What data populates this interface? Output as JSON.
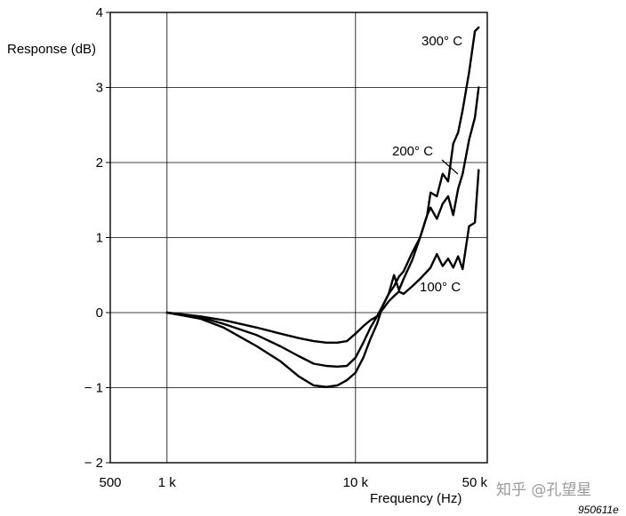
{
  "chart_data": {
    "type": "line",
    "title": "",
    "xlabel": "Frequency (Hz)",
    "ylabel": "Response (dB)",
    "x_scale": "log",
    "xlim": [
      500,
      50000
    ],
    "ylim": [
      -2,
      4
    ],
    "x_ticks": [
      {
        "value": 500,
        "label": "500"
      },
      {
        "value": 1000,
        "label": "1 k"
      },
      {
        "value": 10000,
        "label": "10 k"
      },
      {
        "value": 50000,
        "label": "50 k"
      }
    ],
    "y_ticks": [
      {
        "value": 4,
        "label": "4"
      },
      {
        "value": 3,
        "label": "3"
      },
      {
        "value": 2,
        "label": "2"
      },
      {
        "value": 1,
        "label": "1"
      },
      {
        "value": 0,
        "label": "0"
      },
      {
        "value": -1,
        "label": "− 1"
      },
      {
        "value": -2,
        "label": "− 2"
      }
    ],
    "grid": true,
    "series": [
      {
        "name": "100° C",
        "x": [
          1000,
          1500,
          2000,
          3000,
          4000,
          5000,
          6000,
          7000,
          8000,
          9000,
          10000,
          11000,
          12000,
          13000,
          14000,
          15000,
          16000,
          17000,
          18000,
          20000,
          22000,
          24000,
          25000,
          27000,
          29000,
          31000,
          33000,
          35000,
          37000,
          40000,
          43000,
          45000
        ],
        "y": [
          0.0,
          -0.05,
          -0.1,
          -0.2,
          -0.28,
          -0.34,
          -0.38,
          -0.4,
          -0.4,
          -0.38,
          -0.28,
          -0.18,
          -0.1,
          -0.05,
          0.05,
          0.15,
          0.22,
          0.28,
          0.25,
          0.35,
          0.45,
          0.55,
          0.6,
          0.78,
          0.62,
          0.72,
          0.6,
          0.75,
          0.58,
          1.15,
          1.2,
          1.9
        ]
      },
      {
        "name": "200° C",
        "x": [
          1000,
          1500,
          2000,
          3000,
          4000,
          5000,
          6000,
          7000,
          8000,
          9000,
          10000,
          11000,
          12000,
          13000,
          14000,
          15000,
          16000,
          17000,
          18000,
          20000,
          22000,
          24000,
          25000,
          27000,
          29000,
          31000,
          33000,
          35000,
          37000,
          40000,
          43000,
          45000
        ],
        "y": [
          0.0,
          -0.06,
          -0.15,
          -0.3,
          -0.45,
          -0.58,
          -0.68,
          -0.71,
          -0.72,
          -0.71,
          -0.6,
          -0.4,
          -0.2,
          -0.05,
          0.1,
          0.25,
          0.35,
          0.48,
          0.55,
          0.8,
          1.0,
          1.3,
          1.4,
          1.25,
          1.45,
          1.55,
          1.3,
          1.65,
          1.85,
          2.3,
          2.6,
          3.0
        ]
      },
      {
        "name": "300° C",
        "x": [
          1000,
          1500,
          2000,
          3000,
          4000,
          5000,
          6000,
          7000,
          8000,
          9000,
          10000,
          11000,
          12000,
          13000,
          14000,
          15000,
          16000,
          17000,
          18000,
          20000,
          22000,
          24000,
          25000,
          27000,
          29000,
          31000,
          33000,
          35000,
          37000,
          40000,
          43000,
          45000
        ],
        "y": [
          0.0,
          -0.08,
          -0.2,
          -0.45,
          -0.65,
          -0.85,
          -0.97,
          -0.99,
          -0.97,
          -0.9,
          -0.8,
          -0.6,
          -0.35,
          -0.15,
          0.1,
          0.25,
          0.5,
          0.3,
          0.45,
          0.7,
          1.0,
          1.3,
          1.6,
          1.55,
          1.85,
          1.75,
          2.25,
          2.4,
          2.7,
          3.2,
          3.75,
          3.8
        ]
      }
    ],
    "annotations": [
      "300° C",
      "200° C",
      "100° C"
    ],
    "figure_id": "950611e"
  },
  "watermark": "知乎 @孔望星"
}
